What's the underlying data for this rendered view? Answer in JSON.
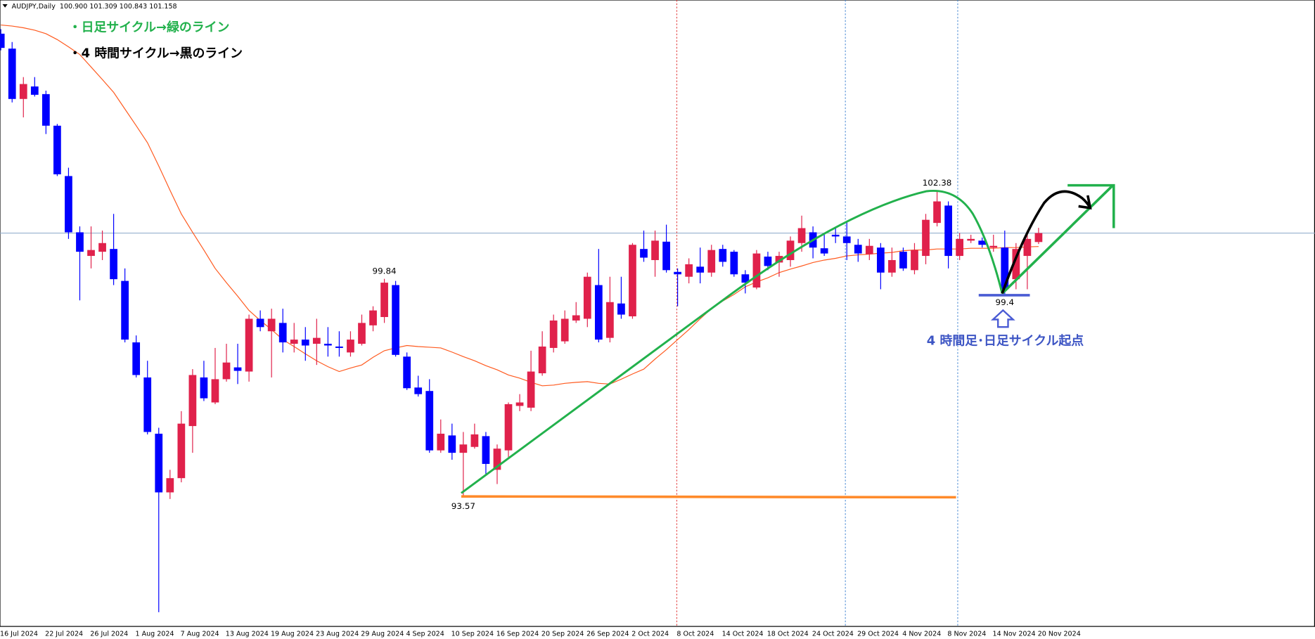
{
  "chart_data": {
    "type": "candlestick",
    "title": "AUDJPY,Daily  100.900 101.309 100.843 101.158",
    "categories": [
      "16 Jul 2024",
      null,
      null,
      null,
      "22 Jul 2024",
      null,
      null,
      null,
      "26 Jul 2024",
      null,
      null,
      null,
      "1 Aug 2024",
      null,
      null,
      null,
      "7 Aug 2024",
      null,
      null,
      null,
      "13 Aug 2024",
      null,
      null,
      null,
      "19 Aug 2024",
      null,
      null,
      null,
      "23 Aug 2024",
      null,
      null,
      null,
      "29 Aug 2024",
      null,
      null,
      null,
      "4 Sep 2024",
      null,
      null,
      null,
      "10 Sep 2024",
      null,
      null,
      null,
      "16 Sep 2024",
      null,
      null,
      null,
      "20 Sep 2024",
      null,
      null,
      null,
      "26 Sep 2024",
      null,
      null,
      null,
      "2 Oct 2024",
      null,
      null,
      null,
      "8 Oct 2024",
      null,
      null,
      null,
      "14 Oct 2024",
      null,
      null,
      null,
      "18 Oct 2024",
      null,
      null,
      null,
      "24 Oct 2024",
      null,
      null,
      null,
      "29 Oct 2024",
      null,
      null,
      null,
      "4 Nov 2024",
      null,
      null,
      null,
      "8 Nov 2024",
      null,
      null,
      null,
      "14 Nov 2024",
      null,
      null,
      null,
      "20 Nov 2024"
    ],
    "open": [
      106.9,
      106.47,
      105.02,
      105.38,
      105.16,
      104.25,
      102.8,
      101.18,
      100.5,
      100.62,
      100.7,
      99.78,
      98.01,
      97.0,
      95.38,
      93.69,
      94.1,
      95.6,
      97.0,
      96.28,
      96.95,
      97.29,
      97.17,
      98.69,
      98.33,
      98.57,
      97.97,
      98.09,
      97.97,
      97.97,
      97.89,
      97.72,
      97.97,
      98.5,
      98.74,
      99.66,
      97.6,
      96.71,
      96.61,
      94.9,
      95.33,
      94.83,
      95.0,
      95.31,
      94.34,
      94.9,
      96.18,
      96.13,
      97.12,
      97.85,
      98.04,
      98.64,
      98.69,
      99.66,
      98.14,
      99.13,
      98.76,
      100.7,
      100.38,
      100.91,
      100.04,
      99.9,
      100.19,
      100.02,
      100.7,
      100.62,
      99.97,
      99.59,
      100.48,
      100.31,
      100.38,
      100.87,
      101.18,
      100.72,
      101.11,
      101.06,
      100.82,
      100.55,
      100.74,
      100.02,
      100.62,
      100.09,
      100.5,
      101.45,
      101.95,
      100.5,
      100.94,
      100.94,
      100.74,
      100.74,
      99.83,
      100.5,
      100.9
    ],
    "high": [
      107.03,
      106.66,
      105.65,
      105.65,
      105.26,
      104.3,
      103.04,
      101.35,
      101.35,
      101.23,
      101.71,
      100.14,
      98.21,
      97.48,
      95.55,
      94.34,
      96.03,
      97.24,
      97.48,
      97.85,
      97.97,
      97.97,
      98.81,
      98.93,
      98.98,
      98.98,
      98.57,
      98.45,
      98.69,
      98.45,
      98.33,
      98.33,
      98.81,
      99.05,
      99.84,
      99.78,
      97.72,
      97.05,
      96.95,
      95.79,
      95.67,
      95.43,
      95.67,
      95.43,
      95.07,
      96.28,
      96.52,
      97.77,
      98.33,
      98.81,
      98.93,
      99.17,
      100.02,
      100.7,
      99.9,
      99.9,
      100.87,
      101.23,
      101.23,
      101.4,
      100.14,
      100.43,
      100.74,
      100.82,
      100.82,
      100.67,
      100.09,
      100.67,
      100.62,
      100.62,
      101.06,
      101.66,
      101.35,
      101.11,
      101.3,
      101.47,
      100.99,
      100.99,
      100.87,
      100.74,
      100.74,
      100.87,
      101.71,
      102.38,
      102.07,
      101.16,
      101.11,
      101.03,
      101.11,
      101.23,
      100.87,
      101.11,
      101.309
    ],
    "low": [
      106.42,
      104.92,
      104.49,
      105.09,
      104.01,
      102.8,
      100.99,
      99.22,
      100.14,
      100.38,
      99.66,
      98.01,
      97.0,
      95.36,
      90.24,
      93.5,
      93.98,
      94.83,
      96.32,
      96.23,
      96.88,
      96.81,
      96.88,
      98.33,
      97.0,
      97.72,
      97.72,
      97.48,
      97.36,
      97.6,
      97.6,
      97.6,
      97.92,
      98.33,
      98.57,
      97.6,
      96.64,
      96.45,
      94.83,
      94.83,
      94.63,
      93.57,
      94.95,
      94.22,
      93.93,
      94.71,
      96.03,
      96.03,
      97.05,
      97.72,
      97.97,
      98.57,
      98.45,
      98.01,
      98.01,
      98.69,
      98.69,
      100.33,
      99.9,
      100.02,
      99.05,
      99.71,
      99.71,
      99.9,
      100.19,
      99.9,
      99.42,
      99.54,
      100.09,
      99.9,
      100.19,
      100.62,
      100.43,
      100.5,
      100.87,
      100.38,
      100.33,
      100.38,
      99.54,
      99.9,
      100.07,
      99.97,
      100.26,
      101.35,
      100.14,
      100.38,
      100.87,
      100.74,
      100.62,
      99.4,
      99.54,
      99.54,
      100.843
    ],
    "close": [
      106.49,
      105.02,
      105.45,
      105.14,
      104.25,
      102.85,
      101.18,
      100.62,
      100.67,
      100.87,
      99.83,
      98.09,
      97.07,
      95.43,
      93.69,
      94.1,
      95.67,
      97.07,
      96.4,
      96.95,
      97.43,
      97.19,
      98.69,
      98.45,
      98.69,
      98.01,
      98.09,
      97.92,
      98.14,
      97.92,
      97.85,
      98.09,
      98.57,
      98.93,
      99.73,
      97.65,
      96.69,
      96.52,
      94.9,
      95.38,
      94.83,
      95.07,
      95.36,
      94.51,
      94.95,
      96.23,
      96.28,
      97.17,
      97.89,
      98.64,
      98.69,
      98.79,
      99.9,
      98.09,
      99.17,
      98.81,
      100.82,
      100.45,
      100.94,
      100.09,
      99.97,
      100.26,
      100.02,
      100.67,
      100.33,
      99.97,
      99.73,
      100.57,
      100.21,
      100.5,
      100.94,
      101.3,
      100.74,
      100.57,
      101.06,
      100.87,
      100.57,
      100.79,
      100.02,
      100.38,
      100.14,
      100.67,
      101.54,
      102.07,
      100.5,
      100.99,
      100.99,
      100.82,
      100.79,
      99.54,
      100.7,
      100.99,
      101.158
    ],
    "up_color": "#e0214b",
    "down_color": "#0000ff",
    "ma": {
      "color": "#ff5a1f",
      "values": [
        107.15,
        107.12,
        107.07,
        107.0,
        106.9,
        106.73,
        106.52,
        106.3,
        105.94,
        105.58,
        105.21,
        104.73,
        104.25,
        103.76,
        103.09,
        102.39,
        101.71,
        101.18,
        100.67,
        100.14,
        99.73,
        99.34,
        98.93,
        98.64,
        98.38,
        98.09,
        97.89,
        97.68,
        97.48,
        97.31,
        97.17,
        97.27,
        97.36,
        97.58,
        97.77,
        97.85,
        97.92,
        97.89,
        97.87,
        97.85,
        97.73,
        97.6,
        97.48,
        97.34,
        97.22,
        97.07,
        96.98,
        96.86,
        96.76,
        96.78,
        96.83,
        96.86,
        96.88,
        96.83,
        96.81,
        96.95,
        97.1,
        97.24,
        97.53,
        97.8,
        98.09,
        98.38,
        98.69,
        98.98,
        99.2,
        99.39,
        99.61,
        99.75,
        99.87,
        100.02,
        100.12,
        100.21,
        100.31,
        100.38,
        100.43,
        100.5,
        100.53,
        100.55,
        100.58,
        100.6,
        100.65,
        100.67,
        100.67,
        100.7,
        100.7,
        100.7,
        100.72,
        100.72,
        100.72,
        100.74,
        100.74,
        100.76,
        100.77
      ]
    },
    "ylim": [
      89.83,
      107.87
    ],
    "annotations": [
      "・日足サイクル→緑のライン",
      "・4 時間サイクル→黒のライン",
      "4 時間足･日足サイクル起点"
    ]
  }
}
